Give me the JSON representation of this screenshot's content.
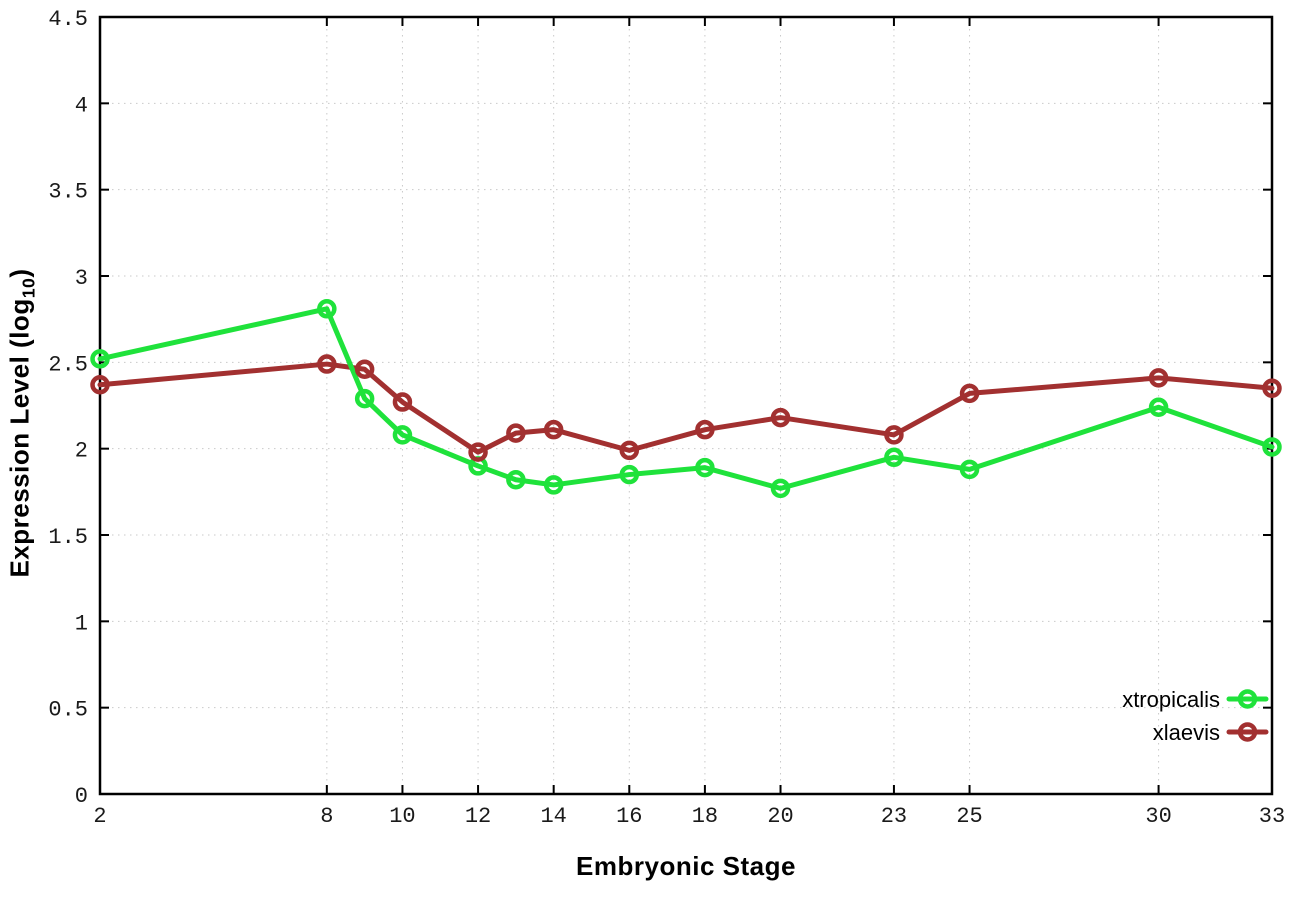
{
  "chart_data": {
    "type": "line",
    "title": "",
    "xlabel": "Embryonic Stage",
    "ylabel": "Expression Level (log10)",
    "ylabel_parts": {
      "prefix": "Expression Level (log",
      "sub": "10",
      "suffix": ")"
    },
    "x": [
      2,
      8,
      9,
      10,
      12,
      13,
      14,
      16,
      18,
      20,
      23,
      25,
      30,
      33
    ],
    "series": [
      {
        "name": "xtropicalis",
        "color": "#1fe23b",
        "values": [
          2.52,
          2.81,
          2.29,
          2.08,
          1.9,
          1.82,
          1.79,
          1.85,
          1.89,
          1.77,
          1.95,
          1.88,
          2.24,
          2.01
        ]
      },
      {
        "name": "xlaevis",
        "color": "#a23030",
        "values": [
          2.37,
          2.49,
          2.46,
          2.27,
          1.98,
          2.09,
          2.11,
          1.99,
          2.11,
          2.18,
          2.08,
          2.32,
          2.41,
          2.35
        ]
      }
    ],
    "xlim": [
      2,
      33
    ],
    "ylim": [
      0,
      4.5
    ],
    "xticks": [
      2,
      8,
      10,
      12,
      14,
      16,
      18,
      20,
      23,
      25,
      30,
      33
    ],
    "yticks": [
      0,
      0.5,
      1,
      1.5,
      2,
      2.5,
      3,
      3.5,
      4,
      4.5
    ],
    "xtick_labels": [
      "2",
      "8",
      "10",
      "12",
      "14",
      "16",
      "18",
      "20",
      "23",
      "25",
      "30",
      "33"
    ],
    "ytick_labels": [
      "0",
      "0.5",
      "1",
      "1.5",
      "2",
      "2.5",
      "3",
      "3.5",
      "4",
      "4.5"
    ],
    "grid": true,
    "legend_position": "inside-right-bottom",
    "legend": [
      "xtropicalis",
      "xlaevis"
    ]
  },
  "style_colors": {
    "grid": "#c9c9c9",
    "axis": "#000000",
    "tick_label": "#1a1a1a",
    "legend_text": "#000000"
  }
}
